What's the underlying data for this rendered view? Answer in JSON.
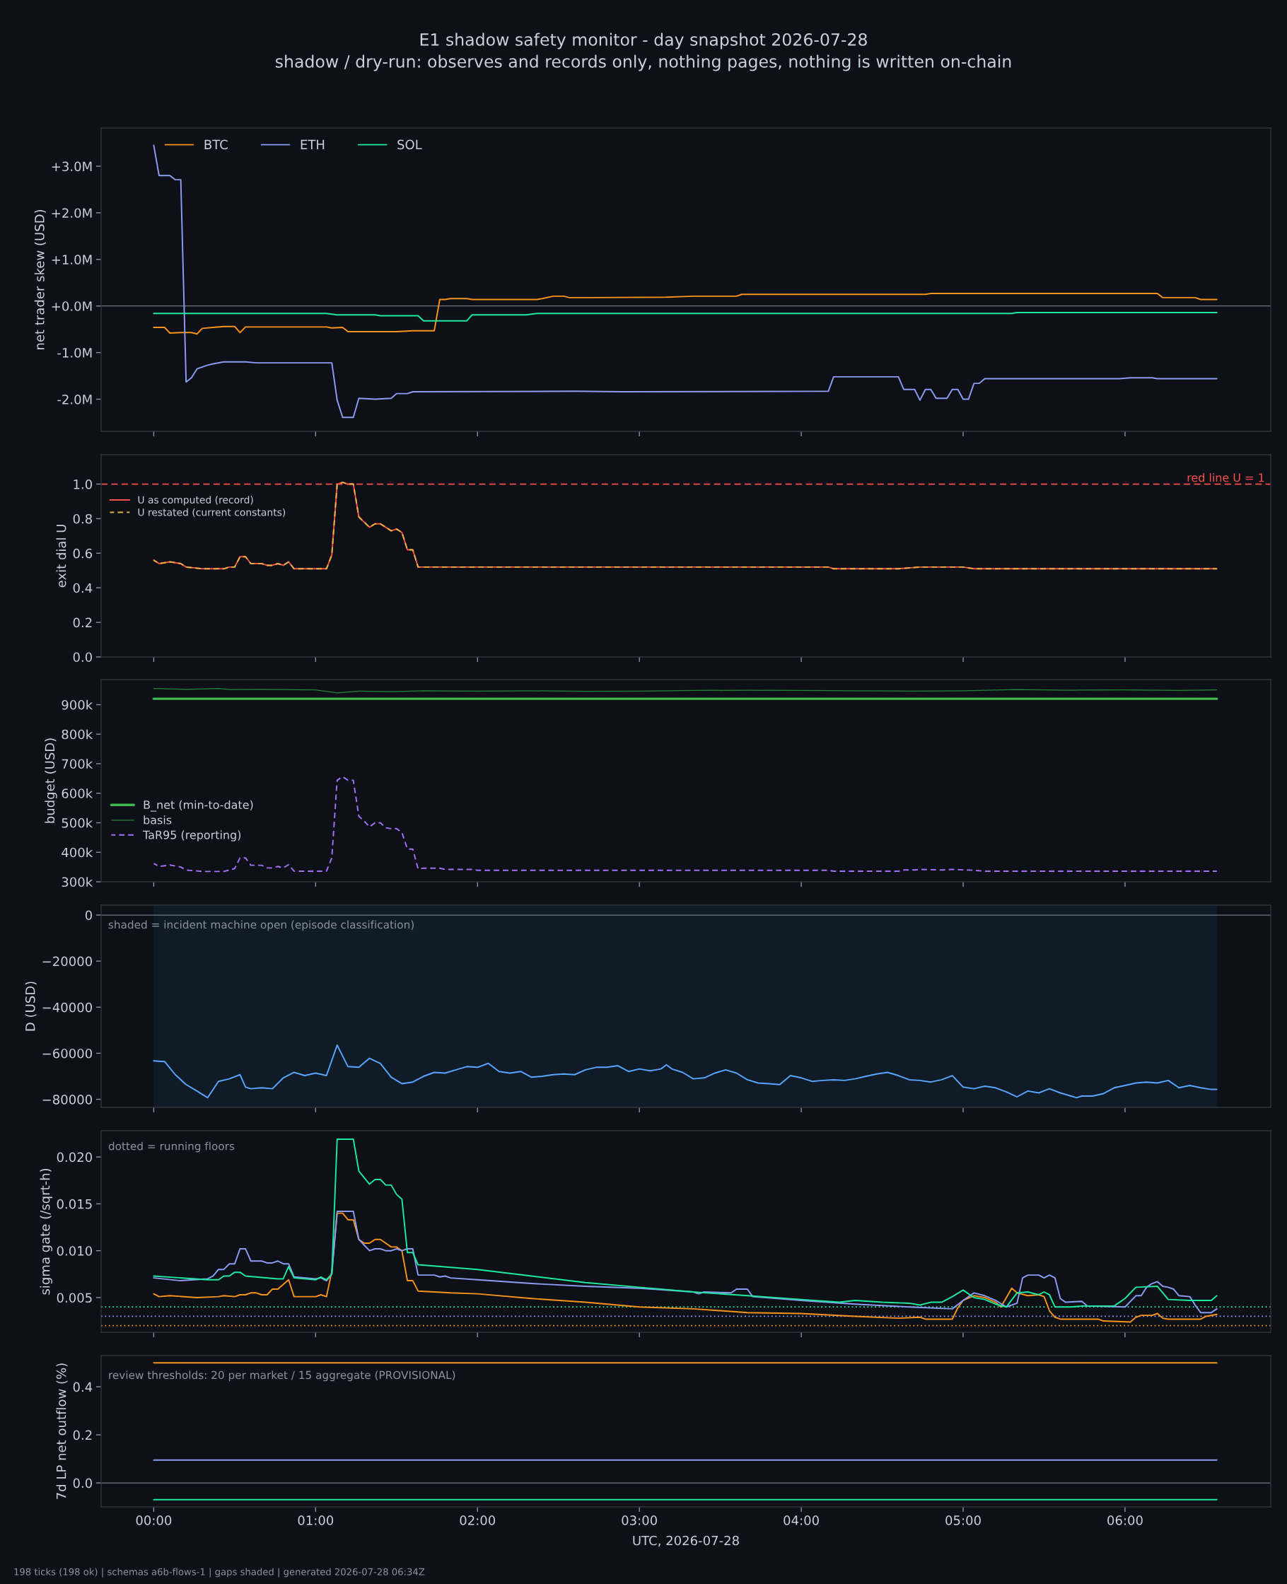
{
  "chart_data": [
    {
      "type": "line",
      "title": "E1 shadow safety monitor - day snapshot 2026-07-28",
      "subtitle": "shadow / dry-run: observes and records only, nothing pages, nothing is written on-chain",
      "ylabel": "net trader skew (USD)",
      "xlim": [
        -0.325,
        6.9
      ],
      "xticks": [
        {
          "value": 0,
          "label": null
        },
        {
          "value": 1,
          "label": null
        },
        {
          "value": 2,
          "label": null
        },
        {
          "value": 3,
          "label": null
        },
        {
          "value": 4,
          "label": null
        },
        {
          "value": 5,
          "label": null
        },
        {
          "value": 6,
          "label": null
        }
      ],
      "ylim": [
        -2690000,
        3820000
      ],
      "yticks": [
        {
          "value": -2000000,
          "label": "-2.0M"
        },
        {
          "value": -1000000,
          "label": "-1.0M"
        },
        {
          "value": 0,
          "label": "+0.0M"
        },
        {
          "value": 1000000,
          "label": "+1.0M"
        },
        {
          "value": 2000000,
          "label": "+2.0M"
        },
        {
          "value": 3000000,
          "label": "+3.0M"
        }
      ],
      "tick_labels": "y",
      "legend": "top left",
      "ref_lines": [
        {
          "axis": "y",
          "value": 0,
          "color": "#6e7681"
        }
      ],
      "series": [
        {
          "name": "BTC",
          "color": "#f7931a",
          "x": [
            0,
            0.067,
            0.1,
            0.167,
            0.233,
            0.267,
            0.3,
            0.367,
            0.433,
            0.5,
            0.533,
            0.567,
            1.067,
            1.1,
            1.167,
            1.2,
            1.5,
            1.6,
            1.733,
            1.767,
            1.8,
            1.833,
            1.933,
            1.967,
            2.367,
            2.4,
            2.467,
            2.533,
            2.567,
            2.7,
            3.167,
            3.333,
            3.6,
            3.633,
            4.767,
            4.8,
            6.2,
            6.233,
            6.433,
            6.467,
            6.567
          ],
          "values": [
            -460000,
            -460000,
            -580000,
            -570000,
            -570000,
            -600000,
            -480000,
            -460000,
            -440000,
            -440000,
            -570000,
            -450000,
            -450000,
            -470000,
            -460000,
            -550000,
            -550000,
            -530000,
            -530000,
            140000,
            140000,
            160000,
            160000,
            140000,
            140000,
            160000,
            210000,
            210000,
            180000,
            180000,
            190000,
            210000,
            210000,
            250000,
            250000,
            270000,
            270000,
            180000,
            180000,
            140000,
            140000
          ]
        },
        {
          "name": "ETH",
          "color": "#8b9cf4",
          "x": [
            0,
            0.033,
            0.1,
            0.133,
            0.167,
            0.2,
            0.233,
            0.267,
            0.333,
            0.367,
            0.433,
            0.567,
            0.633,
            1.1,
            1.133,
            1.167,
            1.233,
            1.267,
            1.367,
            1.467,
            1.5,
            1.567,
            1.6,
            2.6,
            2.9,
            4.167,
            4.2,
            4.6,
            4.633,
            4.7,
            4.733,
            4.767,
            4.8,
            4.833,
            4.9,
            4.933,
            4.967,
            5.0,
            5.033,
            5.067,
            5.1,
            5.133,
            5.967,
            6.033,
            6.167,
            6.2,
            6.567
          ],
          "values": [
            3450000,
            2800000,
            2800000,
            2710000,
            2710000,
            -1630000,
            -1540000,
            -1350000,
            -1270000,
            -1240000,
            -1200000,
            -1200000,
            -1220000,
            -1220000,
            -2020000,
            -2390000,
            -2390000,
            -1980000,
            -2000000,
            -1980000,
            -1880000,
            -1880000,
            -1840000,
            -1830000,
            -1840000,
            -1830000,
            -1520000,
            -1520000,
            -1790000,
            -1790000,
            -2020000,
            -1790000,
            -1790000,
            -1980000,
            -1980000,
            -1790000,
            -1790000,
            -2000000,
            -2000000,
            -1660000,
            -1660000,
            -1560000,
            -1560000,
            -1540000,
            -1540000,
            -1560000,
            -1560000
          ]
        },
        {
          "name": "SOL",
          "color": "#1de9a0",
          "x": [
            0,
            1.067,
            1.133,
            1.367,
            1.4,
            1.633,
            1.667,
            1.933,
            1.967,
            2.3,
            2.367,
            5.3,
            5.333,
            6.567
          ],
          "values": [
            -160000,
            -160000,
            -190000,
            -190000,
            -210000,
            -210000,
            -320000,
            -320000,
            -190000,
            -190000,
            -160000,
            -160000,
            -140000,
            -140000
          ]
        }
      ]
    },
    {
      "type": "line",
      "ylabel": "exit dial U",
      "xlim": [
        -0.325,
        6.9
      ],
      "xticks": [
        {
          "value": 0,
          "label": null
        },
        {
          "value": 1,
          "label": null
        },
        {
          "value": 2,
          "label": null
        },
        {
          "value": 3,
          "label": null
        },
        {
          "value": 4,
          "label": null
        },
        {
          "value": 5,
          "label": null
        },
        {
          "value": 6,
          "label": null
        }
      ],
      "ylim": [
        0,
        1.17
      ],
      "yticks": [
        {
          "value": 0,
          "label": "0.0"
        },
        {
          "value": 0.2,
          "label": "0.2"
        },
        {
          "value": 0.4,
          "label": "0.4"
        },
        {
          "value": 0.6,
          "label": "0.6"
        },
        {
          "value": 0.8,
          "label": "0.8"
        },
        {
          "value": 1,
          "label": "1.0"
        }
      ],
      "tick_labels": "y",
      "legend": "top left",
      "ref_lines": [
        {
          "axis": "y",
          "value": 1,
          "label": "red line U = 1",
          "color": "#f85149",
          "line_style": "dashed"
        }
      ],
      "series": [
        {
          "name": "U as computed (record)",
          "color": "#f85149",
          "x": [
            0,
            0.033,
            0.1,
            0.167,
            0.2,
            0.3,
            0.433,
            0.467,
            0.5,
            0.533,
            0.567,
            0.6,
            0.667,
            0.7,
            0.733,
            0.767,
            0.8,
            0.833,
            0.867,
            1.067,
            1.1,
            1.133,
            1.167,
            1.2,
            1.233,
            1.267,
            1.3,
            1.333,
            1.367,
            1.4,
            1.433,
            1.467,
            1.5,
            1.533,
            1.567,
            1.6,
            1.633,
            1.767,
            1.967,
            4.167,
            4.2,
            4.6,
            4.733,
            4.933,
            5.0,
            5.067,
            6.567
          ],
          "values": [
            0.56,
            0.54,
            0.55,
            0.54,
            0.52,
            0.51,
            0.51,
            0.52,
            0.52,
            0.58,
            0.58,
            0.54,
            0.54,
            0.53,
            0.53,
            0.54,
            0.53,
            0.55,
            0.51,
            0.51,
            0.59,
            1.0,
            1.01,
            1.0,
            1.0,
            0.81,
            0.78,
            0.75,
            0.77,
            0.77,
            0.75,
            0.73,
            0.74,
            0.72,
            0.62,
            0.62,
            0.52,
            0.52,
            0.52,
            0.52,
            0.51,
            0.51,
            0.52,
            0.52,
            0.52,
            0.51,
            0.51
          ]
        },
        {
          "name": "U restated (current constants)",
          "color": "#e3b341",
          "line_style": "dashed",
          "x": [
            0,
            0.033,
            0.1,
            0.167,
            0.2,
            0.3,
            0.433,
            0.467,
            0.5,
            0.533,
            0.567,
            0.6,
            0.667,
            0.7,
            0.733,
            0.767,
            0.8,
            0.833,
            0.867,
            1.067,
            1.1,
            1.133,
            1.167,
            1.2,
            1.233,
            1.267,
            1.3,
            1.333,
            1.367,
            1.4,
            1.433,
            1.467,
            1.5,
            1.533,
            1.567,
            1.6,
            1.633,
            1.767,
            1.967,
            4.167,
            4.2,
            4.6,
            4.733,
            4.933,
            5.0,
            5.067,
            6.567
          ],
          "values": [
            0.56,
            0.54,
            0.55,
            0.54,
            0.52,
            0.51,
            0.51,
            0.52,
            0.52,
            0.58,
            0.58,
            0.54,
            0.54,
            0.53,
            0.53,
            0.54,
            0.53,
            0.55,
            0.51,
            0.51,
            0.59,
            1.0,
            1.01,
            1.0,
            1.0,
            0.81,
            0.78,
            0.75,
            0.77,
            0.77,
            0.75,
            0.73,
            0.74,
            0.72,
            0.62,
            0.62,
            0.52,
            0.52,
            0.52,
            0.52,
            0.51,
            0.51,
            0.52,
            0.52,
            0.52,
            0.51,
            0.51
          ]
        }
      ]
    },
    {
      "type": "line",
      "ylabel": "budget (USD)",
      "xlim": [
        -0.325,
        6.9
      ],
      "xticks": [
        {
          "value": 0,
          "label": null
        },
        {
          "value": 1,
          "label": null
        },
        {
          "value": 2,
          "label": null
        },
        {
          "value": 3,
          "label": null
        },
        {
          "value": 4,
          "label": null
        },
        {
          "value": 5,
          "label": null
        },
        {
          "value": 6,
          "label": null
        }
      ],
      "ylim": [
        300000,
        985000
      ],
      "yticks": [
        {
          "value": 300000,
          "label": "300k"
        },
        {
          "value": 400000,
          "label": "400k"
        },
        {
          "value": 500000,
          "label": "500k"
        },
        {
          "value": 600000,
          "label": "600k"
        },
        {
          "value": 700000,
          "label": "700k"
        },
        {
          "value": 800000,
          "label": "800k"
        },
        {
          "value": 900000,
          "label": "900k"
        }
      ],
      "tick_labels": "y",
      "legend": "bottom left",
      "series": [
        {
          "name": "B_net (min-to-date)",
          "color": "#3fb950",
          "x": [
            0,
            6.567
          ],
          "values": [
            920000,
            920000
          ]
        },
        {
          "name": "basis",
          "color": "#238636",
          "x": [
            0,
            0.2,
            0.4,
            0.467,
            0.667,
            1.0,
            1.133,
            1.267,
            1.467,
            1.667,
            2.0,
            2.333,
            2.667,
            3.0,
            3.333,
            3.667,
            4.0,
            4.333,
            4.667,
            5.0,
            5.333,
            5.667,
            6.0,
            6.333,
            6.567
          ],
          "values": [
            955000,
            952000,
            955000,
            951000,
            952000,
            950000,
            940000,
            946000,
            944000,
            947000,
            946000,
            947000,
            945000,
            946000,
            948000,
            949000,
            948000,
            947000,
            946000,
            947000,
            951000,
            949000,
            950000,
            948000,
            950000
          ]
        },
        {
          "name": "TaR95 (reporting)",
          "color": "#a371f7",
          "line_style": "dashed",
          "x": [
            0,
            0.033,
            0.1,
            0.167,
            0.2,
            0.3,
            0.433,
            0.5,
            0.533,
            0.567,
            0.6,
            0.667,
            0.7,
            0.733,
            0.767,
            0.8,
            0.833,
            0.867,
            1.067,
            1.1,
            1.133,
            1.167,
            1.2,
            1.233,
            1.267,
            1.3,
            1.333,
            1.367,
            1.4,
            1.433,
            1.467,
            1.5,
            1.533,
            1.567,
            1.6,
            1.633,
            1.667,
            1.767,
            1.8,
            1.967,
            2.0,
            4.167,
            4.2,
            4.6,
            4.633,
            4.7,
            4.733,
            4.867,
            4.933,
            5.067,
            5.133,
            6.567
          ],
          "values": [
            362000,
            352000,
            357000,
            350000,
            340000,
            335000,
            335000,
            345000,
            381000,
            381000,
            356000,
            356000,
            347000,
            347000,
            352000,
            347000,
            358000,
            336000,
            336000,
            381000,
            644000,
            656000,
            644000,
            644000,
            522000,
            506000,
            486000,
            500000,
            500000,
            483000,
            480000,
            480000,
            467000,
            411000,
            411000,
            344000,
            346000,
            346000,
            342000,
            342000,
            339000,
            339000,
            336000,
            336000,
            340000,
            340000,
            342000,
            340000,
            342000,
            339000,
            336000,
            336000
          ]
        }
      ]
    },
    {
      "type": "line",
      "ylabel": "D (USD)",
      "xlim": [
        -0.325,
        6.9
      ],
      "xticks": [
        {
          "value": 0,
          "label": null
        },
        {
          "value": 1,
          "label": null
        },
        {
          "value": 2,
          "label": null
        },
        {
          "value": 3,
          "label": null
        },
        {
          "value": 4,
          "label": null
        },
        {
          "value": 5,
          "label": null
        },
        {
          "value": 6,
          "label": null
        }
      ],
      "ylim": [
        -83500,
        4300
      ],
      "yticks": [
        {
          "value": -80000,
          "label": "−80000"
        },
        {
          "value": -60000,
          "label": "−60000"
        },
        {
          "value": -40000,
          "label": "−40000"
        },
        {
          "value": -20000,
          "label": "−20000"
        },
        0
      ],
      "tick_labels": "y",
      "ref_lines": [
        {
          "axis": "y",
          "value": 0,
          "color": "#6e7681"
        }
      ],
      "bands": [
        {
          "axis": "x",
          "from": 0,
          "to": 6.567,
          "color": "#0f1b27"
        }
      ],
      "annotations": [
        "shaded = incident machine open (episode classification)"
      ],
      "series": [
        {
          "color": "#58a6ff",
          "x": [
            0,
            0.067,
            0.133,
            0.2,
            0.267,
            0.333,
            0.4,
            0.467,
            0.533,
            0.567,
            0.6,
            0.667,
            0.733,
            0.8,
            0.867,
            0.933,
            1.0,
            1.067,
            1.133,
            1.2,
            1.267,
            1.333,
            1.4,
            1.467,
            1.533,
            1.6,
            1.667,
            1.733,
            1.8,
            1.867,
            1.933,
            2.0,
            2.067,
            2.133,
            2.2,
            2.267,
            2.333,
            2.4,
            2.467,
            2.533,
            2.6,
            2.667,
            2.733,
            2.8,
            2.867,
            2.933,
            3.0,
            3.067,
            3.133,
            3.167,
            3.2,
            3.267,
            3.333,
            3.4,
            3.467,
            3.533,
            3.6,
            3.667,
            3.733,
            3.8,
            3.867,
            3.933,
            4.0,
            4.067,
            4.133,
            4.2,
            4.267,
            4.333,
            4.4,
            4.467,
            4.533,
            4.6,
            4.667,
            4.733,
            4.8,
            4.867,
            4.933,
            5.0,
            5.067,
            5.133,
            5.2,
            5.267,
            5.333,
            5.4,
            5.467,
            5.533,
            5.6,
            5.667,
            5.7,
            5.733,
            5.8,
            5.867,
            5.933,
            6.0,
            6.067,
            6.133,
            6.2,
            6.267,
            6.333,
            6.4,
            6.467,
            6.533,
            6.567
          ],
          "values": [
            -63300,
            -63600,
            -69300,
            -73600,
            -76400,
            -79300,
            -72200,
            -71100,
            -69300,
            -74700,
            -75400,
            -75000,
            -75400,
            -70700,
            -68300,
            -69700,
            -68600,
            -69700,
            -56500,
            -65800,
            -66100,
            -62200,
            -64400,
            -70400,
            -73200,
            -72500,
            -70000,
            -68300,
            -68600,
            -67200,
            -65800,
            -66100,
            -64400,
            -67900,
            -68600,
            -67900,
            -70400,
            -70000,
            -69300,
            -69000,
            -69300,
            -67200,
            -66100,
            -66100,
            -65400,
            -67900,
            -66800,
            -67600,
            -66800,
            -65000,
            -66800,
            -68300,
            -71100,
            -70700,
            -68600,
            -67200,
            -68600,
            -71500,
            -72900,
            -73200,
            -73600,
            -69700,
            -70700,
            -72200,
            -71800,
            -71500,
            -71800,
            -71100,
            -70000,
            -69000,
            -68300,
            -69700,
            -71500,
            -71800,
            -72500,
            -71500,
            -69700,
            -74700,
            -75400,
            -74300,
            -75000,
            -76800,
            -78900,
            -76400,
            -77200,
            -75400,
            -77200,
            -78600,
            -79300,
            -78600,
            -78600,
            -77500,
            -75000,
            -74000,
            -72900,
            -72500,
            -72900,
            -71800,
            -75000,
            -74000,
            -75000,
            -75700,
            -75700
          ]
        }
      ]
    },
    {
      "type": "line",
      "ylabel": "sigma gate (/sqrt-h)",
      "xlim": [
        -0.325,
        6.9
      ],
      "xticks": [
        {
          "value": 0,
          "label": null
        },
        {
          "value": 1,
          "label": null
        },
        {
          "value": 2,
          "label": null
        },
        {
          "value": 3,
          "label": null
        },
        {
          "value": 4,
          "label": null
        },
        {
          "value": 5,
          "label": null
        },
        {
          "value": 6,
          "label": null
        }
      ],
      "ylim": [
        0.0013,
        0.0228
      ],
      "yticks": [
        {
          "value": 0.005,
          "label": "0.005"
        },
        {
          "value": 0.01,
          "label": "0.010"
        },
        {
          "value": 0.015,
          "label": "0.015"
        },
        {
          "value": 0.02,
          "label": "0.020"
        }
      ],
      "tick_labels": "y",
      "ref_lines": [
        {
          "axis": "y",
          "value": 0.004,
          "color": "#1de9a0",
          "line_style": "dotted"
        },
        {
          "axis": "y",
          "value": 0.003,
          "color": "#8b9cf4",
          "line_style": "dotted"
        },
        {
          "axis": "y",
          "value": 0.002,
          "color": "#f7931a",
          "line_style": "dotted"
        }
      ],
      "annotations": [
        "dotted = running floors"
      ],
      "series": [
        {
          "color": "#f7931a",
          "x": [
            0,
            0.033,
            0.1,
            0.267,
            0.4,
            0.433,
            0.5,
            0.533,
            0.567,
            0.6,
            0.633,
            0.667,
            0.7,
            0.733,
            0.767,
            0.833,
            0.867,
            1.0,
            1.033,
            1.067,
            1.1,
            1.133,
            1.167,
            1.2,
            1.233,
            1.267,
            1.3,
            1.333,
            1.367,
            1.4,
            1.433,
            1.467,
            1.5,
            1.533,
            1.567,
            1.6,
            1.633,
            1.833,
            2.0,
            2.333,
            2.667,
            3.0,
            3.333,
            3.667,
            4.0,
            4.333,
            4.6,
            4.733,
            4.767,
            4.933,
            4.967,
            5.0,
            5.067,
            5.133,
            5.2,
            5.233,
            5.267,
            5.3,
            5.333,
            5.4,
            5.467,
            5.5,
            5.533,
            5.567,
            5.6,
            5.833,
            5.867,
            6.033,
            6.067,
            6.1,
            6.167,
            6.2,
            6.233,
            6.267,
            6.467,
            6.5,
            6.567
          ],
          "values": [
            0.0054,
            0.0051,
            0.0052,
            0.005,
            0.0051,
            0.0052,
            0.0051,
            0.0053,
            0.0053,
            0.0055,
            0.0055,
            0.0053,
            0.0053,
            0.0059,
            0.0059,
            0.0069,
            0.0051,
            0.0051,
            0.0053,
            0.0051,
            0.0078,
            0.014,
            0.014,
            0.0133,
            0.0133,
            0.0112,
            0.0108,
            0.0108,
            0.0112,
            0.0112,
            0.0108,
            0.0104,
            0.0104,
            0.01,
            0.0068,
            0.0068,
            0.0057,
            0.0055,
            0.0054,
            0.0049,
            0.0045,
            0.004,
            0.0038,
            0.0034,
            0.0033,
            0.003,
            0.0028,
            0.0029,
            0.0027,
            0.0027,
            0.0039,
            0.0047,
            0.0052,
            0.005,
            0.0045,
            0.004,
            0.005,
            0.006,
            0.0055,
            0.0052,
            0.0053,
            0.0051,
            0.0036,
            0.0029,
            0.0027,
            0.0027,
            0.0025,
            0.0024,
            0.0029,
            0.0031,
            0.0031,
            0.0033,
            0.0028,
            0.0027,
            0.0027,
            0.003,
            0.0032
          ]
        },
        {
          "color": "#8b9cf4",
          "x": [
            0,
            0.167,
            0.333,
            0.367,
            0.4,
            0.433,
            0.467,
            0.5,
            0.533,
            0.567,
            0.6,
            0.667,
            0.7,
            0.733,
            0.767,
            0.8,
            0.833,
            0.867,
            1.0,
            1.033,
            1.067,
            1.1,
            1.133,
            1.233,
            1.267,
            1.3,
            1.333,
            1.367,
            1.4,
            1.433,
            1.467,
            1.5,
            1.533,
            1.567,
            1.6,
            1.633,
            1.733,
            1.767,
            1.8,
            1.833,
            2.0,
            2.333,
            2.667,
            3.0,
            3.333,
            3.367,
            3.4,
            3.567,
            3.6,
            3.667,
            3.7,
            4.0,
            4.333,
            4.667,
            4.933,
            5.0,
            5.067,
            5.133,
            5.2,
            5.267,
            5.333,
            5.367,
            5.4,
            5.467,
            5.5,
            5.533,
            5.567,
            5.6,
            5.633,
            5.733,
            5.767,
            6.0,
            6.067,
            6.1,
            6.133,
            6.167,
            6.2,
            6.233,
            6.267,
            6.3,
            6.333,
            6.4,
            6.433,
            6.467,
            6.533,
            6.567
          ],
          "values": [
            0.0071,
            0.0068,
            0.007,
            0.0073,
            0.008,
            0.008,
            0.0086,
            0.0086,
            0.0102,
            0.0102,
            0.0089,
            0.0089,
            0.0087,
            0.0087,
            0.0089,
            0.0086,
            0.0086,
            0.0072,
            0.007,
            0.0071,
            0.0068,
            0.0075,
            0.0142,
            0.0142,
            0.0112,
            0.0106,
            0.01,
            0.0102,
            0.0102,
            0.01,
            0.01,
            0.0102,
            0.01,
            0.0102,
            0.0102,
            0.0074,
            0.0074,
            0.0072,
            0.0073,
            0.0071,
            0.0069,
            0.0065,
            0.0062,
            0.006,
            0.0056,
            0.0054,
            0.0056,
            0.0055,
            0.0059,
            0.0059,
            0.0051,
            0.0047,
            0.0043,
            0.004,
            0.0038,
            0.0047,
            0.0055,
            0.0052,
            0.0047,
            0.004,
            0.0044,
            0.0071,
            0.0074,
            0.0074,
            0.0071,
            0.0074,
            0.0071,
            0.0049,
            0.0045,
            0.0046,
            0.0041,
            0.004,
            0.0052,
            0.0052,
            0.0061,
            0.0065,
            0.0067,
            0.0062,
            0.0061,
            0.0059,
            0.0052,
            0.0051,
            0.0042,
            0.0034,
            0.0034,
            0.0038
          ]
        },
        {
          "color": "#1de9a0",
          "x": [
            0,
            0.333,
            0.4,
            0.433,
            0.467,
            0.5,
            0.533,
            0.567,
            0.767,
            0.8,
            0.833,
            0.867,
            1.0,
            1.033,
            1.067,
            1.1,
            1.133,
            1.233,
            1.267,
            1.3,
            1.333,
            1.367,
            1.4,
            1.433,
            1.467,
            1.5,
            1.533,
            1.567,
            1.6,
            1.633,
            2.0,
            2.333,
            2.667,
            3.0,
            3.333,
            3.667,
            4.0,
            4.233,
            4.333,
            4.5,
            4.667,
            4.733,
            4.8,
            4.867,
            4.933,
            5.0,
            5.067,
            5.133,
            5.2,
            5.267,
            5.333,
            5.4,
            5.467,
            5.5,
            5.533,
            5.567,
            5.667,
            5.733,
            5.933,
            6.0,
            6.067,
            6.2,
            6.267,
            6.4,
            6.533,
            6.567
          ],
          "values": [
            0.0073,
            0.0069,
            0.0069,
            0.0073,
            0.0073,
            0.0077,
            0.0077,
            0.0073,
            0.007,
            0.007,
            0.0083,
            0.0071,
            0.0069,
            0.0072,
            0.0069,
            0.0075,
            0.0219,
            0.0219,
            0.0185,
            0.0178,
            0.0171,
            0.0176,
            0.0176,
            0.017,
            0.017,
            0.016,
            0.0155,
            0.0098,
            0.0098,
            0.0085,
            0.008,
            0.0073,
            0.0066,
            0.0061,
            0.0056,
            0.0052,
            0.0048,
            0.0045,
            0.0047,
            0.0045,
            0.0044,
            0.0042,
            0.0045,
            0.0045,
            0.0051,
            0.0058,
            0.005,
            0.0048,
            0.0043,
            0.004,
            0.0055,
            0.0056,
            0.0053,
            0.0056,
            0.0053,
            0.004,
            0.004,
            0.0041,
            0.0041,
            0.0049,
            0.0061,
            0.0062,
            0.0048,
            0.0047,
            0.0047,
            0.0052
          ]
        }
      ]
    },
    {
      "type": "line",
      "xlabel": "UTC, 2026-07-28",
      "ylabel": "7d LP net outflow (%)",
      "xlim": [
        -0.325,
        6.9
      ],
      "xticks": [
        {
          "value": 0,
          "label": "00:00"
        },
        {
          "value": 1,
          "label": "01:00"
        },
        {
          "value": 2,
          "label": "02:00"
        },
        {
          "value": 3,
          "label": "03:00"
        },
        {
          "value": 4,
          "label": "04:00"
        },
        {
          "value": 5,
          "label": "05:00"
        },
        {
          "value": 6,
          "label": "06:00"
        }
      ],
      "ylim": [
        -0.1,
        0.53
      ],
      "yticks": [
        {
          "value": 0,
          "label": "0.0"
        },
        {
          "value": 0.2,
          "label": "0.2"
        },
        {
          "value": 0.4,
          "label": "0.4"
        }
      ],
      "ref_lines": [
        {
          "axis": "y",
          "value": 0,
          "color": "#6e7681"
        }
      ],
      "annotations": [
        "review thresholds: 20 per market / 15 aggregate (PROVISIONAL)",
        "198 ticks (198 ok) | schemas a6b-flows-1 | gaps shaded | generated 2026-07-28 06:34Z"
      ],
      "series": [
        {
          "color": "#f7931a",
          "x": [
            0,
            6.567
          ],
          "values": [
            0.5,
            0.5
          ]
        },
        {
          "color": "#8b9cf4",
          "x": [
            0,
            6.567
          ],
          "values": [
            0.095,
            0.095
          ]
        },
        {
          "color": "#1de9a0",
          "x": [
            0,
            6.567
          ],
          "values": [
            -0.07,
            -0.07
          ]
        }
      ]
    }
  ]
}
